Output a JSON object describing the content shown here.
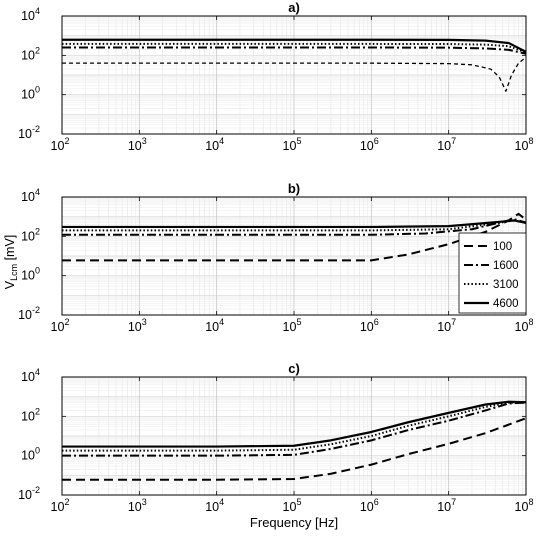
{
  "figure": {
    "ylabel_main": "V",
    "ylabel_sub": "Lcm",
    "ylabel_unit": " [mV]",
    "xlabel": "Frequency [Hz]"
  },
  "chart_data": [
    {
      "type": "line",
      "title": "a)",
      "x_scale": "log",
      "y_scale": "log",
      "xlim": [
        100,
        100000000
      ],
      "ylim": [
        0.01,
        10000
      ],
      "x_ticks": [
        100,
        1000,
        10000,
        100000,
        1000000,
        10000000,
        100000000
      ],
      "x_tick_labels": [
        [
          "10",
          "2"
        ],
        [
          "10",
          "3"
        ],
        [
          "10",
          "4"
        ],
        [
          "10",
          "5"
        ],
        [
          "10",
          "6"
        ],
        [
          "10",
          "7"
        ],
        [
          "10",
          "8"
        ]
      ],
      "y_ticks": [
        0.01,
        1,
        100,
        10000
      ],
      "y_tick_labels": [
        [
          "10",
          "-2"
        ],
        [
          "10",
          "0"
        ],
        [
          "10",
          "2"
        ],
        [
          "10",
          "4"
        ]
      ],
      "grid": true,
      "series": [
        {
          "style": "dashed-short",
          "x": [
            100,
            1000000,
            10000000,
            20000000,
            35000000,
            45000000,
            55000000,
            65000000,
            80000000,
            100000000
          ],
          "y": [
            40,
            40,
            38,
            33,
            20,
            8,
            1.5,
            10,
            40,
            80
          ]
        },
        {
          "style": "dashdot",
          "x": [
            100,
            1000000,
            10000000,
            30000000,
            60000000,
            100000000
          ],
          "y": [
            250,
            250,
            245,
            225,
            190,
            120
          ]
        },
        {
          "style": "dotted",
          "x": [
            100,
            1000000,
            10000000,
            30000000,
            60000000,
            100000000
          ],
          "y": [
            380,
            380,
            375,
            350,
            290,
            140
          ]
        },
        {
          "style": "solid",
          "x": [
            100,
            1000000,
            10000000,
            30000000,
            60000000,
            100000000
          ],
          "y": [
            620,
            620,
            610,
            560,
            420,
            150
          ]
        }
      ]
    },
    {
      "type": "line",
      "title": "b)",
      "x_scale": "log",
      "y_scale": "log",
      "xlim": [
        100,
        100000000
      ],
      "ylim": [
        0.01,
        10000
      ],
      "x_ticks": [
        100,
        1000,
        10000,
        100000,
        1000000,
        10000000,
        100000000
      ],
      "x_tick_labels": [
        [
          "10",
          "2"
        ],
        [
          "10",
          "3"
        ],
        [
          "10",
          "4"
        ],
        [
          "10",
          "5"
        ],
        [
          "10",
          "6"
        ],
        [
          "10",
          "7"
        ],
        [
          "10",
          "8"
        ]
      ],
      "y_ticks": [
        0.01,
        1,
        100,
        10000
      ],
      "y_tick_labels": [
        [
          "10",
          "-2"
        ],
        [
          "10",
          "0"
        ],
        [
          "10",
          "2"
        ],
        [
          "10",
          "4"
        ]
      ],
      "grid": true,
      "legend": {
        "position": "right",
        "entries": [
          "100",
          "1600",
          "3100",
          "4600"
        ]
      },
      "series": [
        {
          "name": "100",
          "style": "dashed-long",
          "x": [
            100,
            1000000,
            3000000,
            10000000,
            30000000,
            60000000,
            80000000,
            100000000
          ],
          "y": [
            6,
            6,
            12,
            40,
            170,
            650,
            1400,
            700
          ]
        },
        {
          "name": "1600",
          "style": "dashdot",
          "x": [
            100,
            1000000,
            5000000,
            20000000,
            50000000,
            70000000,
            100000000
          ],
          "y": [
            120,
            120,
            140,
            230,
            550,
            750,
            500
          ]
        },
        {
          "name": "3100",
          "style": "dotted",
          "x": [
            100,
            1000000,
            10000000,
            40000000,
            70000000,
            100000000
          ],
          "y": [
            200,
            200,
            230,
            450,
            650,
            500
          ]
        },
        {
          "name": "4600",
          "style": "solid",
          "x": [
            100,
            1000000,
            10000000,
            40000000,
            70000000,
            100000000
          ],
          "y": [
            300,
            300,
            330,
            520,
            640,
            480
          ]
        }
      ]
    },
    {
      "type": "line",
      "title": "c)",
      "x_scale": "log",
      "y_scale": "log",
      "xlim": [
        100,
        100000000
      ],
      "ylim": [
        0.01,
        10000
      ],
      "x_ticks": [
        100,
        1000,
        10000,
        100000,
        1000000,
        10000000,
        100000000
      ],
      "x_tick_labels": [
        [
          "10",
          "2"
        ],
        [
          "10",
          "3"
        ],
        [
          "10",
          "4"
        ],
        [
          "10",
          "5"
        ],
        [
          "10",
          "6"
        ],
        [
          "10",
          "7"
        ],
        [
          "10",
          "8"
        ]
      ],
      "y_ticks": [
        0.01,
        1,
        100,
        10000
      ],
      "y_tick_labels": [
        [
          "10",
          "-2"
        ],
        [
          "10",
          "0"
        ],
        [
          "10",
          "2"
        ],
        [
          "10",
          "4"
        ]
      ],
      "grid": true,
      "series": [
        {
          "style": "dashed-long",
          "x": [
            100,
            10000,
            100000,
            300000,
            1000000,
            3000000,
            10000000,
            30000000,
            100000000
          ],
          "y": [
            0.06,
            0.06,
            0.065,
            0.12,
            0.35,
            1.2,
            4,
            14,
            80
          ]
        },
        {
          "style": "dashdot",
          "x": [
            100,
            10000,
            100000,
            300000,
            1000000,
            3000000,
            10000000,
            30000000,
            60000000,
            100000000
          ],
          "y": [
            1,
            1,
            1.1,
            2.2,
            6,
            20,
            60,
            200,
            450,
            500
          ]
        },
        {
          "style": "dotted",
          "x": [
            100,
            10000,
            100000,
            300000,
            1000000,
            3000000,
            10000000,
            30000000,
            60000000,
            100000000
          ],
          "y": [
            1.8,
            1.8,
            2,
            3.8,
            10,
            33,
            100,
            300,
            500,
            500
          ]
        },
        {
          "style": "solid",
          "x": [
            100,
            10000,
            100000,
            300000,
            1000000,
            3000000,
            10000000,
            30000000,
            60000000,
            100000000
          ],
          "y": [
            2.9,
            2.9,
            3.2,
            6,
            16,
            50,
            150,
            400,
            550,
            520
          ]
        }
      ]
    }
  ]
}
